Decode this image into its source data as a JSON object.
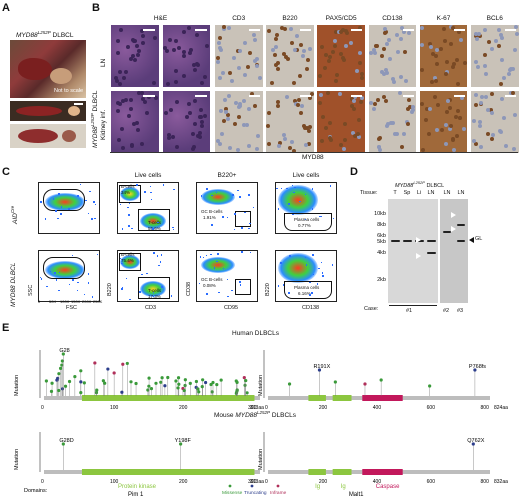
{
  "panels": {
    "A": "A",
    "B": "B",
    "C": "C",
    "D": "D",
    "E": "E"
  },
  "panel_a": {
    "title_prefix": "MYD88",
    "title_sup": "L252P",
    "title_suffix": " DLBCL",
    "note": "Not to scale"
  },
  "panel_b": {
    "columns": [
      "H&E",
      "CD3",
      "B220",
      "PAX5/CD5",
      "CD138",
      "K-67",
      "BCL6"
    ],
    "row_labels": [
      "LN",
      "Kidney inf."
    ],
    "group_label_prefix": "MYD88",
    "group_label_sup": "L252P",
    "group_label_suffix": " DLBCL",
    "footer": "MYD88",
    "colors": {
      "he": "#8a5a9c",
      "he_dark": "#5b3d7a",
      "ihc_bg": "#c9c2b8",
      "ihc_brown": "#7a4a25"
    }
  },
  "panel_c": {
    "row_labels": [
      "AID",
      "MYD88 DLBCL"
    ],
    "row_label_sup": [
      "Cre",
      "L252P"
    ],
    "col_titles": [
      "Live cells",
      "B220+",
      "Live cells"
    ],
    "axes": {
      "fsc_ssc": {
        "x": "FSC",
        "y": "SSC",
        "xticks": [
          "0",
          "50K",
          "100K",
          "150K",
          "200K",
          "250K"
        ]
      },
      "cd3_b220": {
        "x": "CD3",
        "y": "B220"
      },
      "cd95_cd38": {
        "x": "CD95",
        "y": "CD38"
      },
      "cd138_b220": {
        "x": "CD138",
        "y": "B220"
      }
    },
    "gates_row1": {
      "bcells": "B-cells",
      "bcells_pct": "34%",
      "tcells": "T-cells",
      "tcells_pct": "55.6%",
      "gc": "GC B-cells",
      "gc_pct": "1.91%",
      "plasma": "Plasma cells",
      "plasma_pct": "0.77%"
    },
    "gates_row2": {
      "bcells": "B-cells",
      "bcells_pct": "75.4%",
      "tcells": "T-cells",
      "tcells_pct": "17.3%",
      "gc": "GC B-cells",
      "gc_pct": "0.08%",
      "plasma": "Plasma cells",
      "plasma_pct": "6.16%"
    }
  },
  "panel_d": {
    "header_prefix": "MYD88",
    "header_sup": "L252P",
    "header_suffix": " DLBCL",
    "tissue_label": "Tissue:",
    "lanes": [
      "T",
      "Sp",
      "Li",
      "LN",
      "LN",
      "LN"
    ],
    "markers": [
      "10kb",
      "8kb",
      "6kb",
      "5kb",
      "4kb",
      "2kb"
    ],
    "gl_label": "GL",
    "case_label": "Case:",
    "cases": [
      "#1",
      "#2",
      "#3"
    ]
  },
  "panel_e": {
    "human_title": "Human DLBCLs",
    "mouse_title": "Mouse MYD88 DLBCLs",
    "mouse_title_prefix": "Mouse ",
    "mouse_title_gene": "MYD88",
    "mouse_title_sup": "L252P",
    "mouse_title_suffix": " DLBCLs",
    "ylabel": "Mutation",
    "yticks": [
      "0",
      "5",
      "10"
    ],
    "left_ticks": [
      "0",
      "100",
      "200",
      "300"
    ],
    "left_end": "313aa",
    "right_ticks": [
      "0",
      "200",
      "400",
      "600",
      "800"
    ],
    "right_end_human": "824aa",
    "right_end_mouse": "832aa",
    "human_labels": {
      "g28": "G28",
      "r191x": "R191X",
      "p768fs": "P768fs"
    },
    "mouse_labels": {
      "g28d": "G28D",
      "y198f": "Y198F",
      "q762x": "Q762X"
    },
    "domains_label": "Domains:",
    "protein_kinase": "Protein kinase",
    "pim1": "Pim 1",
    "ig1": "Ig",
    "ig2": "Ig",
    "caspase": "Caspase",
    "malt1": "Malt1",
    "legend": [
      "Missense",
      "Truncating",
      "Inframe"
    ],
    "colors": {
      "missense": "#3a9a3a",
      "truncating": "#2c3e8c",
      "inframe": "#b0305a",
      "kinase": "#8cc63f",
      "caspase": "#c2185b",
      "line": "#bdbdbd"
    }
  }
}
